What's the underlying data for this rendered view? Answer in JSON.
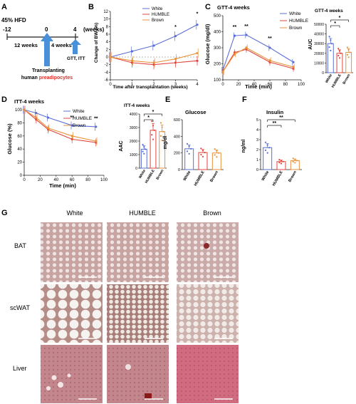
{
  "colors": {
    "white": "#5a6fd6",
    "humble": "#e0443c",
    "brown": "#e8923a",
    "arrow": "#4a90d9",
    "red_text": "#e0302a",
    "bat_bg": "#c9a6a3",
    "scwat_bg": "#ece6e2",
    "liver_bg": "#c98e94"
  },
  "panelA": {
    "letter": "A",
    "diet": "45% HFD",
    "t_start": "-12",
    "t_zero": "0",
    "t_end": "4",
    "unit": "(weeks)",
    "span1": "12 weeks",
    "span2": "4 weeks",
    "test": "GTT, ITT",
    "box_line1": "Transplanting",
    "box_line2a": "human ",
    "box_line2b": "preadipocytes"
  },
  "legend": {
    "white": "White",
    "humble": "HUMBLE",
    "brown": "Brown"
  },
  "panelB": {
    "letter": "B",
    "ylabel": "Change of BW (%)",
    "xlabel": "Time after transplantation (weeks)",
    "star": "*"
  },
  "panelC": {
    "letter": "C",
    "title": "GTT-4 weeks",
    "ylabel": "Glucose (mg/dl)",
    "xlabel": "Time (min)",
    "inset_title": "GTT-4 weeks",
    "inset_ylabel": "AUC",
    "star2": "**",
    "star1": "*"
  },
  "panelD": {
    "letter": "D",
    "title": "ITT-4 weeks",
    "ylabel": "Glucose (%)",
    "xlabel": "Time (min)",
    "inset_title": "ITT-4 weeks",
    "inset_ylabel": "AAC",
    "star2": "**",
    "star1": "*"
  },
  "panelE": {
    "letter": "E",
    "title": "Glucose",
    "ylabel": "mg/dl"
  },
  "panelF": {
    "letter": "F",
    "title": "Insulin",
    "ylabel": "ng/ml",
    "star2": "**"
  },
  "panelG": {
    "letter": "G",
    "cols": [
      "White",
      "HUMBLE",
      "Brown"
    ],
    "rows": [
      "BAT",
      "scWAT",
      "Liver"
    ]
  },
  "chart_data": [
    {
      "id": "B",
      "type": "line",
      "xlabel": "Time after transplantation (weeks)",
      "ylabel": "Change of BW (%)",
      "ylim": [
        -6,
        12
      ],
      "x": [
        0,
        1,
        2,
        3,
        4
      ],
      "series": [
        {
          "name": "White",
          "values": [
            0,
            1.5,
            3,
            5.5,
            8.5
          ]
        },
        {
          "name": "HUMBLE",
          "values": [
            0,
            -1.5,
            -2,
            -1.5,
            -1
          ]
        },
        {
          "name": "Brown",
          "values": [
            0,
            -1,
            -1.5,
            -0.5,
            1
          ]
        }
      ],
      "yticks": [
        -6,
        -4,
        -2,
        0,
        2,
        4,
        6,
        8,
        10,
        12
      ],
      "xticks": [
        0,
        1,
        2,
        3,
        4
      ]
    },
    {
      "id": "C",
      "type": "line",
      "title": "GTT-4 weeks",
      "xlabel": "Time (min)",
      "ylabel": "Glucose (mg/dl)",
      "ylim": [
        100,
        500
      ],
      "x": [
        0,
        15,
        30,
        60,
        90
      ],
      "series": [
        {
          "name": "White",
          "values": [
            160,
            375,
            380,
            300,
            210
          ]
        },
        {
          "name": "HUMBLE",
          "values": [
            150,
            270,
            290,
            210,
            170
          ]
        },
        {
          "name": "Brown",
          "values": [
            150,
            260,
            300,
            220,
            180
          ]
        }
      ],
      "yticks": [
        100,
        200,
        300,
        400,
        500
      ],
      "xticks": [
        0,
        20,
        40,
        60,
        80,
        100
      ]
    },
    {
      "id": "C-inset",
      "type": "bar",
      "title": "GTT-4 weeks",
      "ylabel": "AUC",
      "categories": [
        "White",
        "HUMBLE",
        "Brown"
      ],
      "values": [
        30000,
        20000,
        21000
      ],
      "ylim": [
        0,
        50000
      ],
      "yticks": [
        0,
        10000,
        20000,
        30000,
        40000,
        50000
      ]
    },
    {
      "id": "D",
      "type": "line",
      "title": "ITT-4 weeks",
      "xlabel": "Time (min)",
      "ylabel": "Glucose (%)",
      "ylim": [
        0,
        100
      ],
      "x": [
        0,
        15,
        30,
        60,
        90
      ],
      "series": [
        {
          "name": "White",
          "values": [
            100,
            95,
            88,
            76,
            74
          ]
        },
        {
          "name": "HUMBLE",
          "values": [
            100,
            85,
            70,
            55,
            50
          ]
        },
        {
          "name": "Brown",
          "values": [
            100,
            88,
            72,
            60,
            52
          ]
        }
      ],
      "yticks": [
        0,
        20,
        40,
        60,
        80,
        100
      ],
      "xticks": [
        0,
        20,
        40,
        60,
        80,
        100
      ]
    },
    {
      "id": "D-inset",
      "type": "bar",
      "title": "ITT-4 weeks",
      "ylabel": "AAC",
      "categories": [
        "White",
        "HUMBLE",
        "Brown"
      ],
      "values": [
        1400,
        2800,
        2700
      ],
      "ylim": [
        0,
        4000
      ],
      "yticks": [
        0,
        1000,
        2000,
        3000,
        4000
      ]
    },
    {
      "id": "E",
      "type": "bar",
      "title": "Glucose",
      "ylabel": "mg/dl",
      "categories": [
        "White",
        "HUMBLE",
        "Brown"
      ],
      "values": [
        250,
        205,
        200
      ],
      "ylim": [
        0,
        600
      ],
      "yticks": [
        0,
        200,
        400,
        600
      ]
    },
    {
      "id": "F",
      "type": "bar",
      "title": "Insulin",
      "ylabel": "ng/ml",
      "categories": [
        "White",
        "HUMBLE",
        "Brown"
      ],
      "values": [
        2.2,
        0.8,
        0.9
      ],
      "ylim": [
        0,
        5
      ],
      "yticks": [
        0,
        1,
        2,
        3,
        4,
        5
      ]
    }
  ]
}
